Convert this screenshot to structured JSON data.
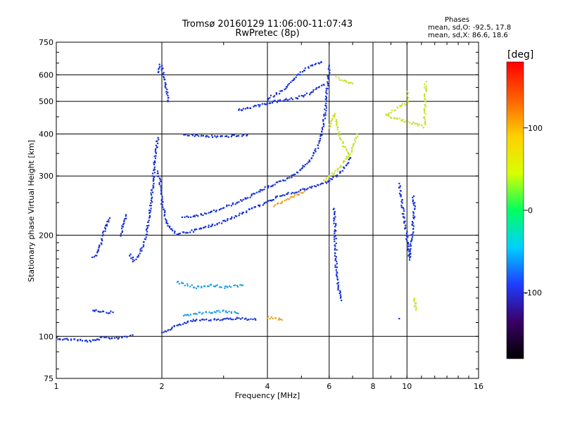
{
  "chart_data": {
    "type": "scatter",
    "title": "Tromsø 20160129 11:06:00-11:07:43",
    "subtitle": "RwPretec (8p)",
    "xlabel": "Frequency [MHz]",
    "ylabel": "Stationary phase Virtual Height [km]",
    "x_scale": "log",
    "y_scale": "log",
    "xlim": [
      1,
      16
    ],
    "ylim": [
      75,
      750
    ],
    "x_ticks": [
      1,
      2,
      4,
      6,
      8,
      10,
      16
    ],
    "y_ticks": [
      75,
      100,
      200,
      300,
      400,
      500,
      600,
      750
    ],
    "grid": true,
    "phase_stats": {
      "header": "Phases",
      "o_line": "mean, sd,O: -92.5, 17.8",
      "x_line": "mean, sd,X:  86.6, 18.6"
    },
    "colorbar": {
      "label": "[deg]",
      "ticks": [
        100,
        0,
        -100
      ],
      "range": [
        -180,
        180
      ],
      "colors": [
        "#000000",
        "#3a0066",
        "#1e3cff",
        "#00d0ff",
        "#00ff60",
        "#d8ff00",
        "#ffd000",
        "#ff6000",
        "#ff0000"
      ]
    },
    "traces": [
      {
        "name": "",
        "color": "#1530d8",
        "points": [
          [
            1.0,
            99
          ],
          [
            1.05,
            98
          ],
          [
            1.12,
            98
          ],
          [
            1.2,
            97
          ],
          [
            1.28,
            97
          ],
          [
            1.35,
            99
          ],
          [
            1.42,
            99
          ],
          [
            1.5,
            99
          ],
          [
            1.58,
            100
          ],
          [
            1.65,
            101
          ]
        ]
      },
      {
        "name": "",
        "color": "#1530d8",
        "points": [
          [
            1.27,
            120
          ],
          [
            1.33,
            119
          ],
          [
            1.4,
            118
          ],
          [
            1.45,
            118
          ]
        ]
      },
      {
        "name": "",
        "color": "#1530d8",
        "points": [
          [
            1.27,
            172
          ],
          [
            1.3,
            175
          ],
          [
            1.33,
            185
          ],
          [
            1.36,
            200
          ],
          [
            1.39,
            215
          ],
          [
            1.42,
            225
          ]
        ]
      },
      {
        "name": "",
        "color": "#1530d8",
        "points": [
          [
            1.53,
            200
          ],
          [
            1.55,
            215
          ],
          [
            1.58,
            230
          ]
        ]
      },
      {
        "name": "",
        "color": "#1530d8",
        "points": [
          [
            1.62,
            175
          ],
          [
            1.66,
            168
          ],
          [
            1.72,
            175
          ],
          [
            1.78,
            190
          ],
          [
            1.83,
            215
          ],
          [
            1.87,
            260
          ],
          [
            1.9,
            320
          ],
          [
            1.93,
            360
          ],
          [
            1.95,
            390
          ]
        ]
      },
      {
        "name": "",
        "color": "#1530d8",
        "points": [
          [
            1.96,
            610
          ],
          [
            1.98,
            640
          ],
          [
            2.0,
            630
          ],
          [
            2.02,
            600
          ],
          [
            2.05,
            560
          ],
          [
            2.08,
            500
          ]
        ]
      },
      {
        "name": "",
        "color": "#1530d8",
        "points": [
          [
            1.95,
            310
          ],
          [
            1.98,
            280
          ],
          [
            2.0,
            250
          ],
          [
            2.05,
            225
          ],
          [
            2.1,
            210
          ],
          [
            2.2,
            202
          ],
          [
            2.4,
            205
          ],
          [
            2.7,
            212
          ],
          [
            3.0,
            220
          ],
          [
            3.3,
            230
          ],
          [
            3.6,
            240
          ],
          [
            3.9,
            248
          ],
          [
            4.2,
            258
          ],
          [
            4.6,
            266
          ],
          [
            5.0,
            272
          ],
          [
            5.5,
            280
          ],
          [
            6.0,
            290
          ],
          [
            6.3,
            300
          ],
          [
            6.6,
            315
          ],
          [
            6.9,
            340
          ]
        ]
      },
      {
        "name": "",
        "color": "#1530d8",
        "points": [
          [
            2.3,
            225
          ],
          [
            2.6,
            230
          ],
          [
            2.9,
            238
          ],
          [
            3.2,
            248
          ],
          [
            3.5,
            258
          ],
          [
            3.8,
            270
          ],
          [
            4.1,
            282
          ],
          [
            4.4,
            290
          ],
          [
            4.7,
            300
          ],
          [
            5.0,
            315
          ],
          [
            5.3,
            335
          ],
          [
            5.55,
            365
          ],
          [
            5.7,
            400
          ],
          [
            5.82,
            450
          ],
          [
            5.9,
            510
          ],
          [
            5.95,
            580
          ],
          [
            6.0,
            640
          ]
        ]
      },
      {
        "name": "",
        "color": "#1530d8",
        "points": [
          [
            2.3,
            398
          ],
          [
            2.6,
            395
          ],
          [
            2.9,
            393
          ],
          [
            3.2,
            395
          ],
          [
            3.5,
            397
          ]
        ]
      },
      {
        "name": "",
        "color": "#1530d8",
        "points": [
          [
            3.3,
            470
          ],
          [
            3.6,
            480
          ],
          [
            3.9,
            490
          ],
          [
            4.2,
            500
          ],
          [
            4.5,
            505
          ],
          [
            4.8,
            510
          ],
          [
            5.1,
            520
          ],
          [
            5.4,
            535
          ],
          [
            5.6,
            550
          ],
          [
            5.8,
            560
          ]
        ]
      },
      {
        "name": "",
        "color": "#1530d8",
        "points": [
          [
            4.0,
            510
          ],
          [
            4.3,
            530
          ],
          [
            4.6,
            560
          ],
          [
            4.9,
            600
          ],
          [
            5.2,
            630
          ],
          [
            5.5,
            645
          ],
          [
            5.7,
            655
          ]
        ]
      },
      {
        "name": "",
        "color": "#1530d8",
        "points": [
          [
            2.0,
            102
          ],
          [
            2.2,
            108
          ],
          [
            2.5,
            112
          ],
          [
            2.8,
            112
          ],
          [
            3.1,
            113
          ],
          [
            3.4,
            113
          ],
          [
            3.7,
            112
          ]
        ]
      },
      {
        "name": "",
        "color": "#1fa0e8",
        "points": [
          [
            2.3,
            115
          ],
          [
            2.5,
            117
          ],
          [
            2.8,
            118
          ],
          [
            3.0,
            119
          ],
          [
            3.3,
            117
          ]
        ]
      },
      {
        "name": "",
        "color": "#1fa0e8",
        "points": [
          [
            2.2,
            145
          ],
          [
            2.5,
            140
          ],
          [
            2.8,
            142
          ],
          [
            3.0,
            140
          ],
          [
            3.4,
            142
          ]
        ]
      },
      {
        "name": "",
        "color": "#e8a020",
        "points": [
          [
            4.0,
            114
          ],
          [
            4.2,
            113
          ],
          [
            4.4,
            112
          ]
        ]
      },
      {
        "name": "",
        "color": "#e8a020",
        "points": [
          [
            4.2,
            245
          ],
          [
            4.5,
            255
          ],
          [
            4.8,
            262
          ],
          [
            5.1,
            270
          ]
        ]
      },
      {
        "name": "",
        "color": "#c8e020",
        "points": [
          [
            5.8,
            290
          ],
          [
            6.0,
            300
          ],
          [
            6.3,
            310
          ],
          [
            6.6,
            330
          ],
          [
            6.9,
            350
          ],
          [
            7.1,
            375
          ],
          [
            7.2,
            400
          ]
        ]
      },
      {
        "name": "",
        "color": "#c8e020",
        "points": [
          [
            6.3,
            590
          ],
          [
            6.5,
            580
          ],
          [
            6.8,
            570
          ],
          [
            7.0,
            565
          ]
        ]
      },
      {
        "name": "",
        "color": "#c8e020",
        "points": [
          [
            6.0,
            420
          ],
          [
            6.1,
            440
          ],
          [
            6.2,
            460
          ],
          [
            6.4,
            400
          ],
          [
            6.6,
            370
          ],
          [
            6.8,
            350
          ]
        ]
      },
      {
        "name": "",
        "color": "#1530d8",
        "points": [
          [
            6.2,
            240
          ],
          [
            6.3,
            150
          ],
          [
            6.5,
            128
          ],
          [
            10.4,
            260
          ],
          [
            10.5,
            245
          ],
          [
            10.2,
            170
          ],
          [
            9.5,
            285
          ],
          [
            9.5,
            113
          ]
        ]
      },
      {
        "name": "",
        "color": "#c8e020",
        "points": [
          [
            10.5,
            130
          ],
          [
            10.6,
            120
          ],
          [
            11.3,
            570
          ],
          [
            11.2,
            420
          ],
          [
            8.7,
            455
          ],
          [
            10.1,
            500
          ],
          [
            10.0,
            535
          ]
        ]
      }
    ]
  }
}
